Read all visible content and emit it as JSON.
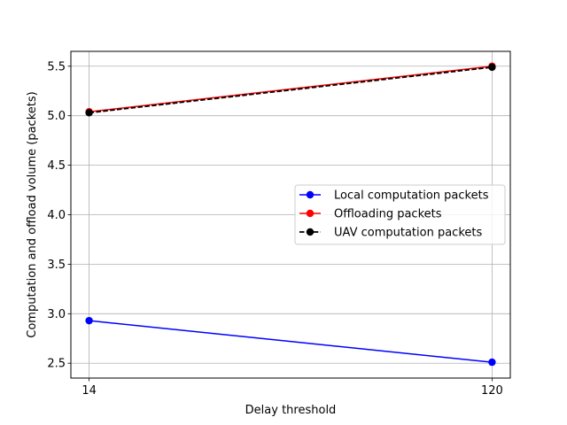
{
  "chart_data": {
    "type": "line",
    "title": "",
    "xlabel": "Delay threshold",
    "ylabel": "Computation and offload volume (packets)",
    "x": [
      14,
      120
    ],
    "x_ticks": [
      14,
      120
    ],
    "xlim": [
      9.2,
      124.8
    ],
    "ylim": [
      2.35,
      5.65
    ],
    "y_ticks": [
      2.5,
      3.0,
      3.5,
      4.0,
      4.5,
      5.0,
      5.5
    ],
    "y_tick_labels": [
      "2.5",
      "3.0",
      "3.5",
      "4.0",
      "4.5",
      "5.0",
      "5.5"
    ],
    "grid": true,
    "legend_position": "center-right",
    "series": [
      {
        "name": "Local computation packets",
        "values": [
          2.93,
          2.51
        ],
        "color": "#0000ff",
        "line_style": "solid",
        "marker": "circle"
      },
      {
        "name": "Offloading packets",
        "values": [
          5.04,
          5.5
        ],
        "color": "#ff0000",
        "line_style": "solid",
        "marker": "circle"
      },
      {
        "name": "UAV computation packets",
        "values": [
          5.03,
          5.49
        ],
        "color": "#000000",
        "line_style": "dashed",
        "marker": "circle"
      }
    ]
  }
}
